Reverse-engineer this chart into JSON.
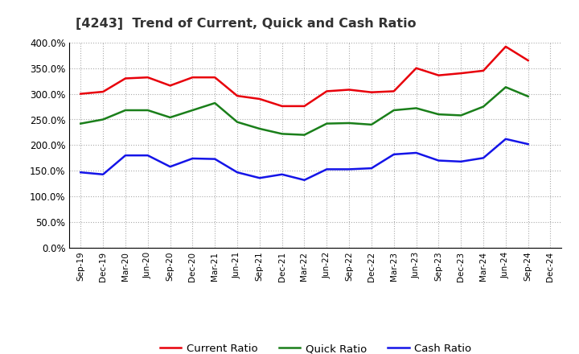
{
  "title": "[4243]  Trend of Current, Quick and Cash Ratio",
  "x_labels": [
    "Sep-19",
    "Dec-19",
    "Mar-20",
    "Jun-20",
    "Sep-20",
    "Dec-20",
    "Mar-21",
    "Jun-21",
    "Sep-21",
    "Dec-21",
    "Mar-22",
    "Jun-22",
    "Sep-22",
    "Dec-22",
    "Mar-23",
    "Jun-23",
    "Sep-23",
    "Dec-23",
    "Mar-24",
    "Jun-24",
    "Sep-24",
    "Dec-24"
  ],
  "current_ratio": [
    300.0,
    304.0,
    330.0,
    332.0,
    316.0,
    332.0,
    332.0,
    296.0,
    290.0,
    276.0,
    276.0,
    305.0,
    308.0,
    303.0,
    305.0,
    350.0,
    336.0,
    340.0,
    345.0,
    392.0,
    365.0,
    null
  ],
  "quick_ratio": [
    242.0,
    250.0,
    268.0,
    268.0,
    254.0,
    268.0,
    282.0,
    245.0,
    232.0,
    222.0,
    220.0,
    242.0,
    243.0,
    240.0,
    268.0,
    272.0,
    260.0,
    258.0,
    275.0,
    313.0,
    295.0,
    null
  ],
  "cash_ratio": [
    147.0,
    143.0,
    180.0,
    180.0,
    158.0,
    174.0,
    173.0,
    147.0,
    136.0,
    143.0,
    132.0,
    153.0,
    153.0,
    155.0,
    182.0,
    185.0,
    170.0,
    168.0,
    175.0,
    212.0,
    202.0,
    null
  ],
  "ylim": [
    0,
    400
  ],
  "yticks": [
    0,
    50,
    100,
    150,
    200,
    250,
    300,
    350,
    400
  ],
  "current_color": "#e8000a",
  "quick_color": "#1a7f1a",
  "cash_color": "#1414e8",
  "bg_color": "#ffffff",
  "plot_bg_color": "#ffffff",
  "grid_color": "#aaaaaa",
  "title_color": "#333333",
  "legend_labels": [
    "Current Ratio",
    "Quick Ratio",
    "Cash Ratio"
  ]
}
